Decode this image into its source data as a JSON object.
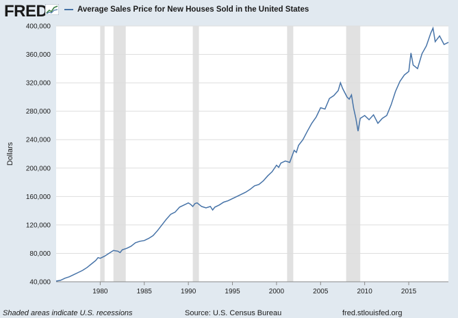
{
  "header": {
    "logo_text": "FRED",
    "logo_icon": "trend-line-chart-icon"
  },
  "colors": {
    "background": "#e1e9f0",
    "plot_background": "#ffffff",
    "series_line": "#4572a7",
    "recession_shade": "#e1e1e1",
    "grid": "#dddddd"
  },
  "footer": {
    "note": "Shaded areas indicate U.S. recessions",
    "source": "Source: U.S. Census Bureau",
    "url": "fred.stlouisfed.org"
  },
  "chart_data": {
    "type": "line",
    "title": "",
    "xlabel": "",
    "ylabel": "Dollars",
    "xlim": [
      1975.0,
      2019.5
    ],
    "ylim": [
      40000,
      400000
    ],
    "grid": "horizontal",
    "legend_placement": "top-left",
    "x_ticks": [
      1980,
      1985,
      1990,
      1995,
      2000,
      2005,
      2010,
      2015
    ],
    "y_ticks": [
      40000,
      80000,
      120000,
      160000,
      200000,
      240000,
      280000,
      320000,
      360000,
      400000
    ],
    "y_tick_labels": [
      "40,000",
      "80,000",
      "120,000",
      "160,000",
      "200,000",
      "240,000",
      "280,000",
      "320,000",
      "360,000",
      "400,000"
    ],
    "recessions": [
      [
        1980.0,
        1980.5
      ],
      [
        1981.5,
        1982.9
      ],
      [
        1990.5,
        1991.2
      ],
      [
        2001.2,
        2001.9
      ],
      [
        2007.9,
        2009.5
      ]
    ],
    "series": [
      {
        "name": "Average Sales Price for New Houses Sold in the United States",
        "points": [
          [
            1975.0,
            41000
          ],
          [
            1975.5,
            42000
          ],
          [
            1976.0,
            45000
          ],
          [
            1976.5,
            47000
          ],
          [
            1977.0,
            50000
          ],
          [
            1977.5,
            53000
          ],
          [
            1978.0,
            56000
          ],
          [
            1978.5,
            60000
          ],
          [
            1979.0,
            65000
          ],
          [
            1979.5,
            70000
          ],
          [
            1979.75,
            74000
          ],
          [
            1980.0,
            73000
          ],
          [
            1980.5,
            76000
          ],
          [
            1981.0,
            80000
          ],
          [
            1981.5,
            84000
          ],
          [
            1982.0,
            83000
          ],
          [
            1982.25,
            81000
          ],
          [
            1982.5,
            85000
          ],
          [
            1983.0,
            87000
          ],
          [
            1983.5,
            90000
          ],
          [
            1984.0,
            95000
          ],
          [
            1984.5,
            97000
          ],
          [
            1985.0,
            98000
          ],
          [
            1985.5,
            101000
          ],
          [
            1986.0,
            105000
          ],
          [
            1986.5,
            112000
          ],
          [
            1987.0,
            120000
          ],
          [
            1987.5,
            128000
          ],
          [
            1988.0,
            135000
          ],
          [
            1988.5,
            138000
          ],
          [
            1989.0,
            145000
          ],
          [
            1989.5,
            148000
          ],
          [
            1990.0,
            151000
          ],
          [
            1990.25,
            149000
          ],
          [
            1990.5,
            146000
          ],
          [
            1990.75,
            150000
          ],
          [
            1991.0,
            151000
          ],
          [
            1991.5,
            146000
          ],
          [
            1992.0,
            144000
          ],
          [
            1992.5,
            146000
          ],
          [
            1992.75,
            141000
          ],
          [
            1993.0,
            145000
          ],
          [
            1993.5,
            148000
          ],
          [
            1994.0,
            152000
          ],
          [
            1994.5,
            154000
          ],
          [
            1995.0,
            157000
          ],
          [
            1995.5,
            160000
          ],
          [
            1996.0,
            163000
          ],
          [
            1996.5,
            166000
          ],
          [
            1997.0,
            170000
          ],
          [
            1997.5,
            175000
          ],
          [
            1998.0,
            177000
          ],
          [
            1998.5,
            182000
          ],
          [
            1999.0,
            189000
          ],
          [
            1999.5,
            195000
          ],
          [
            2000.0,
            204000
          ],
          [
            2000.25,
            201000
          ],
          [
            2000.5,
            207000
          ],
          [
            2001.0,
            210000
          ],
          [
            2001.5,
            208000
          ],
          [
            2002.0,
            225000
          ],
          [
            2002.25,
            222000
          ],
          [
            2002.5,
            232000
          ],
          [
            2003.0,
            240000
          ],
          [
            2003.5,
            252000
          ],
          [
            2004.0,
            263000
          ],
          [
            2004.5,
            272000
          ],
          [
            2005.0,
            285000
          ],
          [
            2005.5,
            283000
          ],
          [
            2006.0,
            298000
          ],
          [
            2006.5,
            302000
          ],
          [
            2007.0,
            309000
          ],
          [
            2007.25,
            320000
          ],
          [
            2007.5,
            312000
          ],
          [
            2008.0,
            300000
          ],
          [
            2008.25,
            297000
          ],
          [
            2008.5,
            303000
          ],
          [
            2008.75,
            284000
          ],
          [
            2009.0,
            270000
          ],
          [
            2009.25,
            252000
          ],
          [
            2009.5,
            270000
          ],
          [
            2010.0,
            274000
          ],
          [
            2010.5,
            268000
          ],
          [
            2011.0,
            275000
          ],
          [
            2011.5,
            263000
          ],
          [
            2012.0,
            270000
          ],
          [
            2012.5,
            274000
          ],
          [
            2013.0,
            289000
          ],
          [
            2013.5,
            308000
          ],
          [
            2014.0,
            322000
          ],
          [
            2014.5,
            331000
          ],
          [
            2015.0,
            336000
          ],
          [
            2015.25,
            362000
          ],
          [
            2015.5,
            345000
          ],
          [
            2016.0,
            340000
          ],
          [
            2016.5,
            361000
          ],
          [
            2017.0,
            372000
          ],
          [
            2017.5,
            390000
          ],
          [
            2017.75,
            397000
          ],
          [
            2018.0,
            378000
          ],
          [
            2018.5,
            386000
          ],
          [
            2019.0,
            374000
          ],
          [
            2019.5,
            377000
          ]
        ]
      }
    ]
  }
}
